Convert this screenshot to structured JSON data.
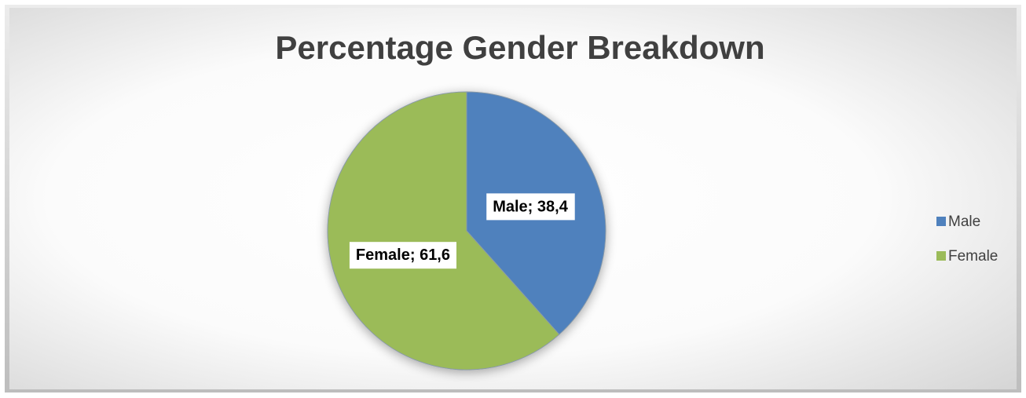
{
  "chart_data": {
    "type": "pie",
    "title": "Percentage Gender Breakdown",
    "categories": [
      "Male",
      "Female"
    ],
    "values": [
      38.4,
      61.6
    ],
    "value_labels": [
      "Male; 38,4",
      "Female; 61,6"
    ],
    "colors": [
      "#4f81bd",
      "#9bbb59"
    ],
    "legend": "right"
  }
}
